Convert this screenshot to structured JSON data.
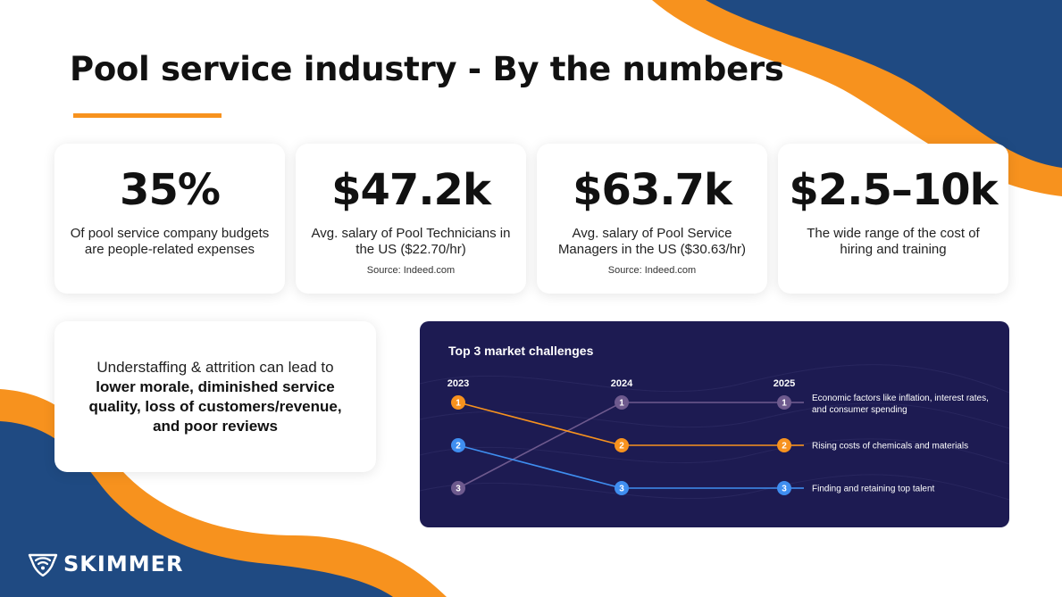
{
  "colors": {
    "navy": "#1f4a82",
    "orange": "#f7921e",
    "panel": "#1d1b52",
    "rank1": "#6e5a8e",
    "rank2": "#f7921e",
    "rank3": "#3f8ef0"
  },
  "header": {
    "title": "Pool service industry - By the numbers"
  },
  "stats": [
    {
      "value": "35%",
      "description": "Of pool service company budgets are people-related expenses",
      "source": ""
    },
    {
      "value": "$47.2k",
      "description": "Avg. salary of Pool Technicians in the US ($22.70/hr)",
      "source": "Source: Indeed.com"
    },
    {
      "value": "$63.7k",
      "description": "Avg. salary of Pool Service Managers in the US ($30.63/hr)",
      "source": "Source: Indeed.com"
    },
    {
      "value": "$2.5–10k",
      "description": "The wide range of the cost of hiring and training",
      "source": ""
    }
  ],
  "callout": {
    "intro": "Understaffing & attrition can lead to",
    "emphasis": "lower morale, diminished service quality, loss of customers/revenue, and poor reviews"
  },
  "chart_data": {
    "type": "bump",
    "title": "Top 3 market challenges",
    "x": [
      "2023",
      "2024",
      "2025"
    ],
    "series": [
      {
        "name": "Economic factors like inflation, interest rates, and consumer spending",
        "ranks": [
          3,
          1,
          1
        ],
        "color": "#6e5a8e"
      },
      {
        "name": "Rising costs of chemicals and materials",
        "ranks": [
          1,
          2,
          2
        ],
        "color": "#f7921e"
      },
      {
        "name": "Finding and retaining top talent",
        "ranks": [
          2,
          3,
          3
        ],
        "color": "#3f8ef0"
      }
    ],
    "ylim": [
      1,
      3
    ],
    "y_inverted": true
  },
  "brand": {
    "logo_text": "SKIMMER",
    "logo_icon": "wifi-shield-icon"
  }
}
